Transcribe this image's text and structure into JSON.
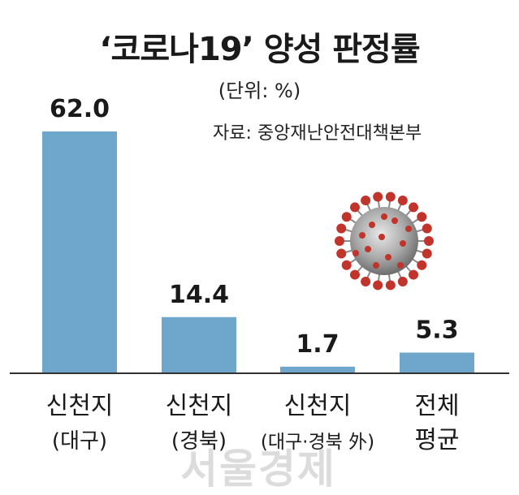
{
  "header": {
    "title": "‘코로나19’ 양성 판정률",
    "unit": "(단위: %)",
    "source": "자료: 중앙재난안전대책본부"
  },
  "watermark": "서울경제",
  "colors": {
    "bar": "#6fa6cb",
    "baseline": "#333333",
    "virus": "#c0342c"
  },
  "chart_data": {
    "type": "bar",
    "title": "‘코로나19’ 양성 판정률",
    "unit": "(단위: %)",
    "categories": [
      [
        "신천지",
        "(대구)"
      ],
      [
        "신천지",
        "(경북)"
      ],
      [
        "신천지",
        "(대구·경북 外)"
      ],
      [
        "전체",
        "평균"
      ]
    ],
    "values": [
      62.0,
      14.4,
      1.7,
      5.3
    ],
    "value_labels": [
      "62.0",
      "14.4",
      "1.7",
      "5.3"
    ],
    "ylim": [
      0,
      62.0
    ],
    "grid": false,
    "legend": "none"
  }
}
